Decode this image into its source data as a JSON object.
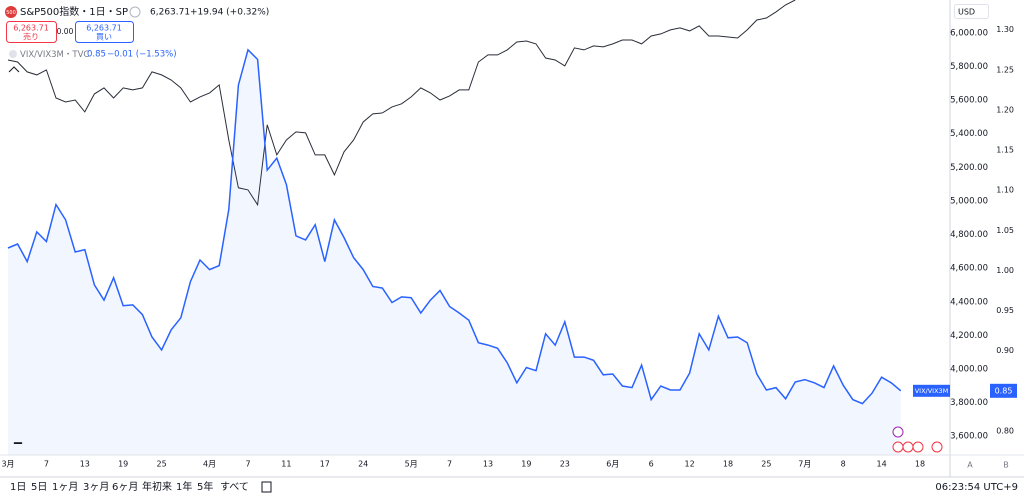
{
  "chart_data": {
    "type": "line",
    "categories": [
      "3月",
      null,
      null,
      null,
      "7",
      null,
      null,
      null,
      "13",
      null,
      null,
      null,
      "19",
      null,
      null,
      null,
      "25",
      null,
      null,
      null,
      null,
      "4月",
      null,
      null,
      null,
      "7",
      null,
      null,
      null,
      "11",
      null,
      null,
      null,
      "17",
      null,
      null,
      null,
      "24",
      null,
      null,
      null,
      null,
      "5月",
      null,
      null,
      null,
      "7",
      null,
      null,
      null,
      "13",
      null,
      null,
      null,
      "19",
      null,
      null,
      null,
      "23",
      null,
      null,
      null,
      null,
      "6月",
      null,
      null,
      null,
      "6",
      null,
      null,
      null,
      "12",
      null,
      null,
      null,
      "18",
      null,
      null,
      null,
      "25",
      null,
      null,
      null,
      "7月",
      null,
      null,
      null,
      "8",
      null,
      null,
      null,
      "14",
      null,
      null,
      null,
      "18"
    ],
    "series": [
      {
        "name": "S&P500指数",
        "color": "#2a2e39",
        "values": [
          5839,
          5827,
          5768,
          5750,
          5780,
          5613,
          5589,
          5601,
          5530,
          5637,
          5673,
          5613,
          5673,
          5661,
          5673,
          5768,
          5750,
          5720,
          5673,
          5589,
          5619,
          5643,
          5691,
          5363,
          5078,
          5066,
          4977,
          5453,
          5274,
          5363,
          5411,
          5405,
          5274,
          5274,
          5155,
          5292,
          5363,
          5470,
          5518,
          5524,
          5560,
          5578,
          5619,
          5673,
          5643,
          5601,
          5625,
          5661,
          5661,
          5827,
          5869,
          5869,
          5899,
          5946,
          5952,
          5935,
          5851,
          5839,
          5804,
          5911,
          5899,
          5923,
          5917,
          5935,
          5958,
          5958,
          5935,
          5982,
          5994,
          6018,
          6030,
          6012,
          6042,
          5982,
          5982,
          5976,
          5970,
          6018,
          6077,
          6089,
          6125,
          6167,
          6196,
          null,
          null,
          null,
          null,
          null,
          null,
          null,
          null,
          null,
          null,
          null,
          null,
          null
        ]
      },
      {
        "name": "VIX/VIX3M",
        "color": "#2962ff",
        "axis": "y2",
        "fill": "rgba(41,98,255,0.06)",
        "values": [
          1.028,
          1.033,
          1.011,
          1.048,
          1.036,
          1.082,
          1.063,
          1.023,
          1.026,
          0.982,
          0.963,
          0.991,
          0.956,
          0.957,
          0.945,
          0.917,
          0.901,
          0.926,
          0.941,
          0.986,
          1.013,
          1.001,
          1.006,
          1.076,
          1.231,
          1.275,
          1.263,
          1.125,
          1.14,
          1.107,
          1.043,
          1.038,
          1.057,
          1.011,
          1.063,
          1.041,
          1.016,
          1.001,
          0.98,
          0.978,
          0.96,
          0.967,
          0.966,
          0.947,
          0.963,
          0.975,
          0.955,
          0.947,
          0.938,
          0.91,
          0.907,
          0.903,
          0.885,
          0.86,
          0.879,
          0.875,
          0.921,
          0.907,
          0.936,
          0.892,
          0.892,
          0.888,
          0.87,
          0.871,
          0.856,
          0.854,
          0.882,
          0.839,
          0.856,
          0.851,
          0.851,
          0.872,
          0.921,
          0.901,
          0.943,
          0.916,
          0.917,
          0.91,
          0.871,
          0.851,
          0.854,
          0.84,
          0.861,
          0.864,
          0.86,
          0.854,
          0.881,
          0.857,
          0.839,
          0.834,
          0.847,
          0.867,
          0.86,
          0.85,
          null,
          null
        ]
      }
    ],
    "ylim": [
      3488,
      6196
    ],
    "yticks": [
      {
        "value": 3600,
        "label": "3,600.00"
      },
      {
        "value": 3800,
        "label": "3,800.00"
      },
      {
        "value": 4000,
        "label": "4,000.00"
      },
      {
        "value": 4200,
        "label": "4,200.00"
      },
      {
        "value": 4400,
        "label": "4,400.00"
      },
      {
        "value": 4600,
        "label": "4,600.00"
      },
      {
        "value": 4800,
        "label": "4,800.00"
      },
      {
        "value": 5000,
        "label": "5,000.00"
      },
      {
        "value": 5200,
        "label": "5,200.00"
      },
      {
        "value": 5400,
        "label": "5,400.00"
      },
      {
        "value": 5600,
        "label": "5,600.00"
      },
      {
        "value": 5800,
        "label": "5,800.00"
      },
      {
        "value": 6000,
        "label": "6,000.00"
      }
    ],
    "y2lim": [
      0.77,
      1.337
    ],
    "y2ticks": [
      {
        "value": 0.8,
        "label": "0.80"
      },
      0.85,
      {
        "value": 0.9,
        "label": "0.90"
      },
      0.95,
      {
        "value": 1.0,
        "label": "1.00"
      },
      1.05,
      {
        "value": 1.1,
        "label": "1.10"
      },
      1.15,
      {
        "value": 1.2,
        "label": "1.20"
      },
      1.25,
      {
        "value": 1.3,
        "label": "1.30"
      }
    ],
    "grid": false
  },
  "header": {
    "icon": "500",
    "symbol_suffix": "・1日・SP",
    "price": "6,263.71",
    "change": "+19.94 (+0.32%)",
    "sell_price": "6,263.71",
    "sell_label": "売り",
    "spread": "0.00",
    "buy_price": "6,263.71",
    "buy_label": "買い",
    "vix_suffix": "・TVC",
    "vix_value": "0.85",
    "vix_change": "−0.01 (−1.53%)",
    "currency": "USD",
    "scale_a": "A",
    "scale_b": "B"
  },
  "toolbar": {
    "periods": [
      "1日",
      "5日",
      "1ヶ月",
      "3ヶ月",
      "6ヶ月",
      "年初来",
      "1年",
      "5年",
      "すべて"
    ],
    "time": "06:23:54 UTC+9"
  }
}
